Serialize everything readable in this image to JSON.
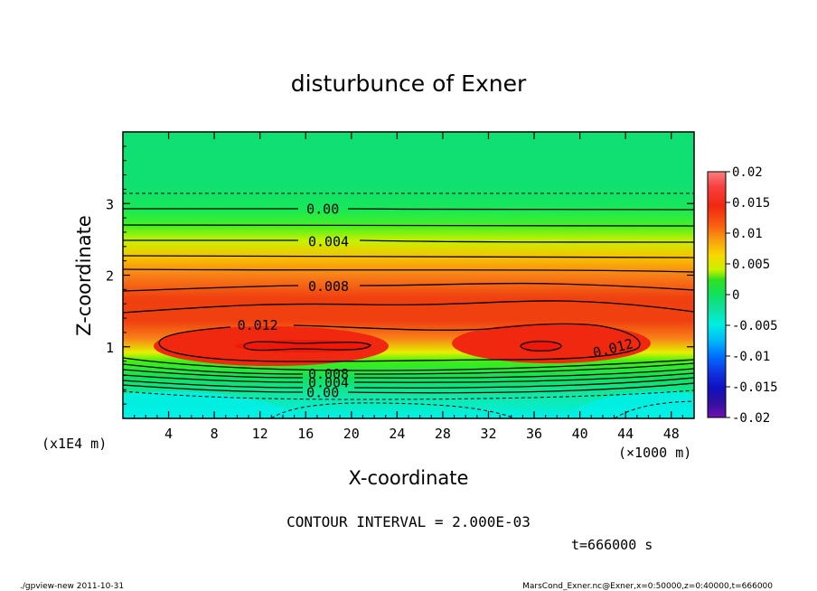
{
  "chart_data": {
    "type": "heatmap",
    "title": "disturbunce of Exner",
    "xlabel": "X-coordinate",
    "ylabel": "Z-coordinate",
    "x_unit": "(×1000 m)",
    "y_unit": "(x1E4 m)",
    "x_ticks": [
      "4",
      "8",
      "12",
      "16",
      "20",
      "24",
      "28",
      "32",
      "36",
      "40",
      "44",
      "48"
    ],
    "x_tick_values": [
      4,
      8,
      12,
      16,
      20,
      24,
      28,
      32,
      36,
      40,
      44,
      48
    ],
    "y_ticks": [
      "1",
      "2",
      "3"
    ],
    "y_tick_values": [
      1,
      2,
      3
    ],
    "xlim": [
      0,
      50
    ],
    "ylim": [
      0,
      4
    ],
    "colorbar": {
      "ticks": [
        "0.02",
        "0.015",
        "0.01",
        "0.005",
        "0",
        "-0.005",
        "-0.01",
        "-0.015",
        "-0.02"
      ],
      "tick_values": [
        0.02,
        0.015,
        0.01,
        0.005,
        0,
        -0.005,
        -0.01,
        -0.015,
        -0.02
      ],
      "range": [
        -0.02,
        0.02
      ]
    },
    "contour_labels": [
      {
        "text": "0.00",
        "x": 17.5,
        "y": 2.92
      },
      {
        "text": "0.004",
        "x": 18,
        "y": 2.47
      },
      {
        "text": "0.008",
        "x": 18,
        "y": 1.84
      },
      {
        "text": "0.012",
        "x": 11.8,
        "y": 1.3
      },
      {
        "text": "0.012",
        "x": 43,
        "y": 0.98
      },
      {
        "text": "0.008",
        "x": 18,
        "y": 0.62
      },
      {
        "text": "0.004",
        "x": 18,
        "y": 0.5
      },
      {
        "text": "0.00",
        "x": 17.5,
        "y": 0.36
      }
    ],
    "contour_interval": "CONTOUR INTERVAL = 2.000E-03",
    "time": "t=666000 s"
  },
  "footer": {
    "left": "./gpview-new  2011-10-31",
    "right": "MarsCond_Exner.nc@Exner,x=0:50000,z=0:40000,t=666000"
  },
  "colors": {
    "max_red": "#f0240c",
    "mid_orange": "#f89020",
    "yellow": "#e8f000",
    "green": "#10e060",
    "cyan": "#00f0e0",
    "neg_blue": "#0050ff",
    "min_purple": "#7010b0"
  }
}
